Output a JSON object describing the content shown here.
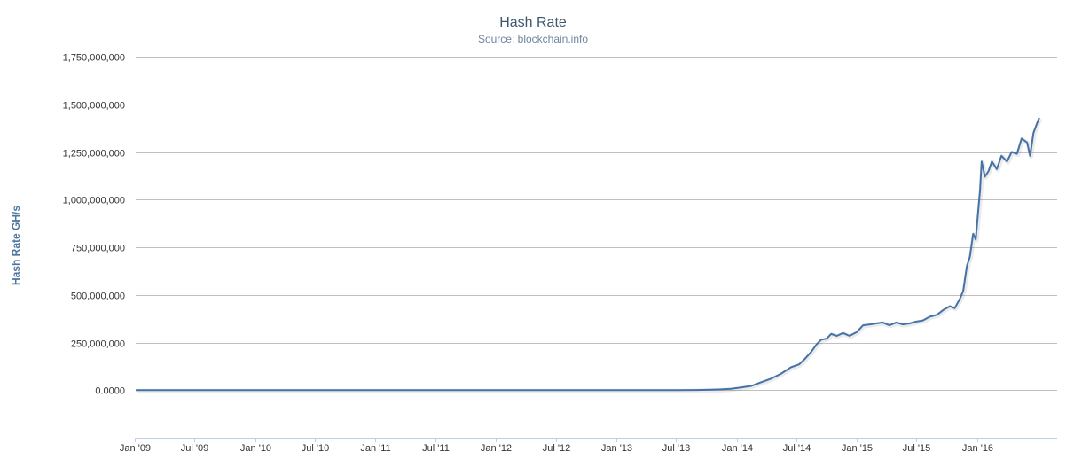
{
  "chart_data": {
    "type": "line",
    "title": "Hash Rate",
    "subtitle": "Source: blockchain.info",
    "ylabel": "Hash Rate GH/s",
    "xlabel": "",
    "ylim": [
      -250000000,
      1750000000
    ],
    "xlim": [
      "2009-01-03",
      "2016-08-31"
    ],
    "grid": true,
    "legend": "none",
    "color": "#4572a7",
    "yticks": [
      0,
      250000000,
      500000000,
      750000000,
      1000000000,
      1250000000,
      1500000000,
      1750000000
    ],
    "ytick_labels": [
      "0.0000",
      "250,000,000",
      "500,000,000",
      "750,000,000",
      "1,000,000,000",
      "1,250,000,000",
      "1,500,000,000",
      "1,750,000,000"
    ],
    "xticks": [
      "2009-01-01",
      "2009-07-01",
      "2010-01-01",
      "2010-07-01",
      "2011-01-01",
      "2011-07-01",
      "2012-01-01",
      "2012-07-01",
      "2013-01-01",
      "2013-07-01",
      "2014-01-01",
      "2014-07-01",
      "2015-01-01",
      "2015-07-01",
      "2016-01-01"
    ],
    "xtick_labels": [
      "Jan '09",
      "Jul '09",
      "Jan '10",
      "Jul '10",
      "Jan '11",
      "Jul '11",
      "Jan '12",
      "Jul '12",
      "Jan '13",
      "Jul '13",
      "Jan '14",
      "Jul '14",
      "Jan '15",
      "Jul '15",
      "Jan '16"
    ],
    "series": [
      {
        "points": [
          [
            "2009-01-03",
            0
          ],
          [
            "2010-01-01",
            0
          ],
          [
            "2011-01-01",
            0
          ],
          [
            "2012-01-01",
            0
          ],
          [
            "2013-01-01",
            0
          ],
          [
            "2013-06-01",
            0
          ],
          [
            "2013-09-01",
            500000
          ],
          [
            "2013-10-15",
            2000000
          ],
          [
            "2013-11-15",
            4000000
          ],
          [
            "2013-12-15",
            7000000
          ],
          [
            "2014-01-15",
            14000000
          ],
          [
            "2014-02-15",
            22000000
          ],
          [
            "2014-03-15",
            40000000
          ],
          [
            "2014-04-15",
            60000000
          ],
          [
            "2014-05-15",
            85000000
          ],
          [
            "2014-06-15",
            120000000
          ],
          [
            "2014-07-10",
            135000000
          ],
          [
            "2014-07-25",
            160000000
          ],
          [
            "2014-08-15",
            200000000
          ],
          [
            "2014-09-01",
            240000000
          ],
          [
            "2014-09-15",
            265000000
          ],
          [
            "2014-10-01",
            270000000
          ],
          [
            "2014-10-15",
            295000000
          ],
          [
            "2014-11-01",
            285000000
          ],
          [
            "2014-11-20",
            300000000
          ],
          [
            "2014-12-10",
            285000000
          ],
          [
            "2015-01-01",
            305000000
          ],
          [
            "2015-01-20",
            340000000
          ],
          [
            "2015-02-10",
            345000000
          ],
          [
            "2015-03-01",
            350000000
          ],
          [
            "2015-03-20",
            355000000
          ],
          [
            "2015-04-10",
            340000000
          ],
          [
            "2015-05-01",
            355000000
          ],
          [
            "2015-05-20",
            345000000
          ],
          [
            "2015-06-10",
            350000000
          ],
          [
            "2015-07-01",
            360000000
          ],
          [
            "2015-07-20",
            365000000
          ],
          [
            "2015-08-10",
            385000000
          ],
          [
            "2015-09-01",
            395000000
          ],
          [
            "2015-09-20",
            420000000
          ],
          [
            "2015-10-10",
            440000000
          ],
          [
            "2015-10-25",
            430000000
          ],
          [
            "2015-11-10",
            480000000
          ],
          [
            "2015-11-20",
            520000000
          ],
          [
            "2015-12-01",
            650000000
          ],
          [
            "2015-12-10",
            700000000
          ],
          [
            "2015-12-20",
            820000000
          ],
          [
            "2015-12-28",
            790000000
          ],
          [
            "2016-01-05",
            950000000
          ],
          [
            "2016-01-10",
            1050000000
          ],
          [
            "2016-01-15",
            1200000000
          ],
          [
            "2016-01-25",
            1120000000
          ],
          [
            "2016-02-05",
            1150000000
          ],
          [
            "2016-02-15",
            1200000000
          ],
          [
            "2016-03-01",
            1160000000
          ],
          [
            "2016-03-15",
            1230000000
          ],
          [
            "2016-04-01",
            1200000000
          ],
          [
            "2016-04-15",
            1250000000
          ],
          [
            "2016-05-01",
            1240000000
          ],
          [
            "2016-05-15",
            1320000000
          ],
          [
            "2016-06-01",
            1300000000
          ],
          [
            "2016-06-10",
            1230000000
          ],
          [
            "2016-06-20",
            1350000000
          ],
          [
            "2016-07-01",
            1400000000
          ],
          [
            "2016-07-08",
            1430000000
          ]
        ]
      }
    ]
  }
}
